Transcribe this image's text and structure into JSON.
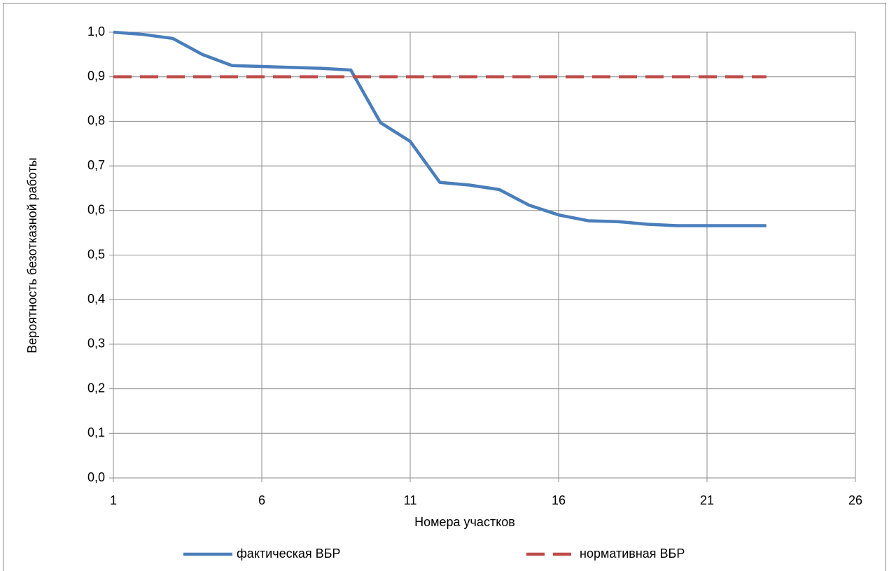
{
  "chart_data": {
    "type": "line",
    "xlabel": "Номера участков",
    "ylabel": "Вероятность безотказной работы",
    "x": [
      1,
      2,
      3,
      4,
      5,
      6,
      7,
      8,
      9,
      10,
      11,
      12,
      13,
      14,
      15,
      16,
      17,
      18,
      19,
      20,
      21,
      22,
      23
    ],
    "series": [
      {
        "name": "фактическая ВБР",
        "color": "#4a7ebb",
        "dash": false,
        "values": [
          1.0,
          0.995,
          0.986,
          0.95,
          0.925,
          0.923,
          0.921,
          0.919,
          0.915,
          0.797,
          0.755,
          0.663,
          0.657,
          0.647,
          0.612,
          0.59,
          0.577,
          0.575,
          0.569,
          0.566,
          0.566,
          0.566,
          0.566
        ]
      },
      {
        "name": "нормативная ВБР",
        "color": "#be4b48",
        "dash": true,
        "values": [
          0.9,
          0.9,
          0.9,
          0.9,
          0.9,
          0.9,
          0.9,
          0.9,
          0.9,
          0.9,
          0.9,
          0.9,
          0.9,
          0.9,
          0.9,
          0.9,
          0.9,
          0.9,
          0.9,
          0.9,
          0.9,
          0.9,
          0.9
        ]
      }
    ],
    "xlim": [
      1,
      26
    ],
    "xticks": [
      1,
      6,
      11,
      16,
      21,
      26
    ],
    "ylim": [
      0,
      1
    ],
    "yticks": [
      {
        "value": 0,
        "label": "0,0"
      },
      {
        "value": 0.1,
        "label": "0,1"
      },
      {
        "value": 0.2,
        "label": "0,2"
      },
      {
        "value": 0.3,
        "label": "0,3"
      },
      {
        "value": 0.4,
        "label": "0,4"
      },
      {
        "value": 0.5,
        "label": "0,5"
      },
      {
        "value": 0.6,
        "label": "0,6"
      },
      {
        "value": 0.7,
        "label": "0,7"
      },
      {
        "value": 0.8,
        "label": "0,8"
      },
      {
        "value": 0.9,
        "label": "0,9"
      },
      {
        "value": 1,
        "label": "1,0"
      }
    ],
    "grid": true,
    "legend": "bottom"
  }
}
